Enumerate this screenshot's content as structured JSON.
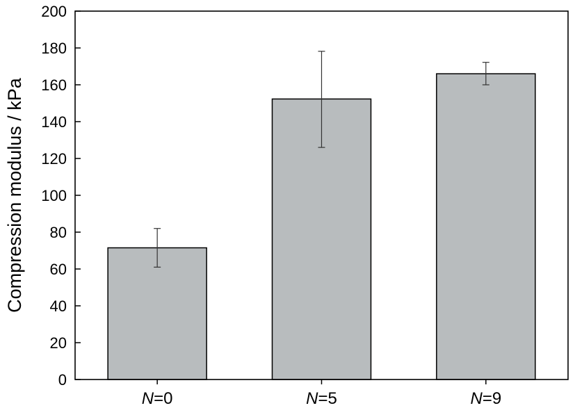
{
  "chart_data": {
    "type": "bar",
    "title": "",
    "xlabel": "",
    "ylabel": "Compression modulus / kPa",
    "ylim": [
      0,
      200
    ],
    "yticks": [
      0,
      20,
      40,
      60,
      80,
      100,
      120,
      140,
      160,
      180,
      200
    ],
    "grid": false,
    "legend": "none",
    "categories": [
      {
        "var": "N",
        "rest": "=0"
      },
      {
        "var": "N",
        "rest": "=5"
      },
      {
        "var": "N",
        "rest": "=9"
      }
    ],
    "values": [
      71.5,
      152.3,
      166.0
    ],
    "error_low": [
      61.0,
      126.0,
      160.0
    ],
    "error_high": [
      82.0,
      178.2,
      172.2
    ],
    "colors": {
      "bar_fill": "#b8bcbe",
      "bar_stroke": "#000000",
      "axis": "#000000",
      "error_bar": "#333333"
    }
  }
}
